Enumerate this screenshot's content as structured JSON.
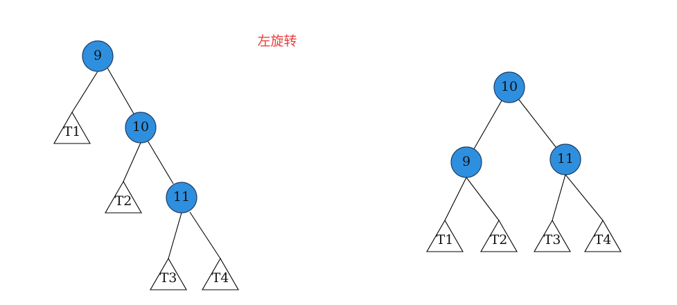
{
  "caption": {
    "text": "左旋转",
    "color": "#e8403c"
  },
  "colors": {
    "node_fill": "#2f8fdf"
  },
  "before_tree": {
    "nodes": [
      "9",
      "10",
      "11"
    ],
    "subtrees": [
      "T1",
      "T2",
      "T3",
      "T4"
    ]
  },
  "after_tree": {
    "nodes": [
      "10",
      "9",
      "11"
    ],
    "subtrees": [
      "T1",
      "T2",
      "T3",
      "T4"
    ]
  }
}
